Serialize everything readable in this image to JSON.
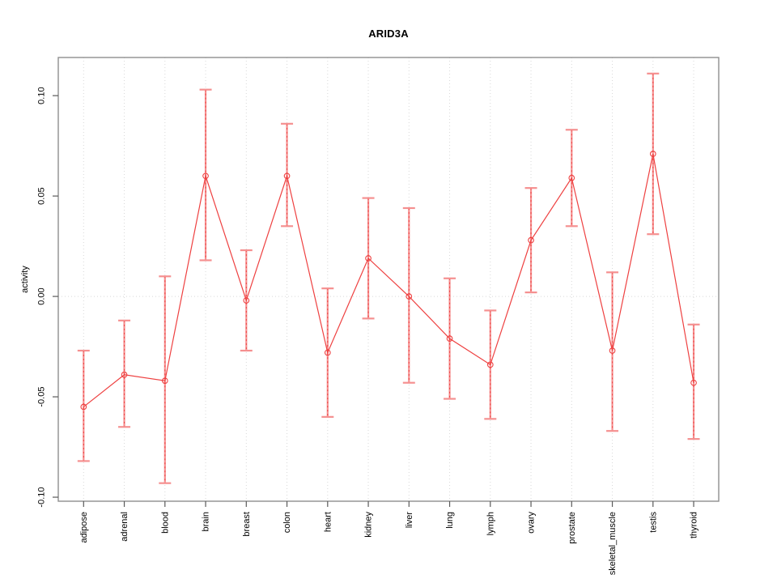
{
  "chart_data": {
    "type": "line",
    "title": "ARID3A",
    "ylabel": "activity",
    "xlabel": "",
    "legend_position": "none",
    "grid": "dotted vertical line at each category; dotted horizontal line at zero",
    "categories": [
      "adipose",
      "adrenal",
      "blood",
      "brain",
      "breast",
      "colon",
      "heart",
      "kidney",
      "liver",
      "lung",
      "lymph",
      "ovary",
      "prostate",
      "skeletal_muscle",
      "testis",
      "thyroid"
    ],
    "series": [
      {
        "name": "activity",
        "values": [
          -0.055,
          -0.039,
          -0.042,
          0.06,
          -0.002,
          0.06,
          -0.028,
          0.019,
          0.0,
          -0.021,
          -0.034,
          0.028,
          0.059,
          -0.027,
          0.071,
          -0.043
        ],
        "error_lower": [
          -0.082,
          -0.065,
          -0.093,
          0.018,
          -0.027,
          0.035,
          -0.06,
          -0.011,
          -0.043,
          -0.051,
          -0.061,
          0.002,
          0.035,
          -0.067,
          0.031,
          -0.071
        ],
        "error_upper": [
          -0.027,
          -0.012,
          0.01,
          0.103,
          0.023,
          0.086,
          0.004,
          0.049,
          0.044,
          0.009,
          -0.007,
          0.054,
          0.083,
          0.012,
          0.111,
          -0.014
        ]
      }
    ],
    "yticks": {
      "values": [
        -0.1,
        -0.05,
        0.0,
        0.05,
        0.1
      ],
      "labels": [
        "-0.10",
        "-0.05",
        "0.00",
        "0.05",
        "0.10"
      ]
    },
    "ylim": [
      -0.102,
      0.119
    ],
    "marker": "open-circle",
    "colors": {
      "line": "#ee4040",
      "marker": "#ee4040",
      "error_bar": "#f59090",
      "error_dash": "#ee4040",
      "grid": "#d8d8d8",
      "box": "#8f8f8f",
      "tick": "#5a5a5a",
      "text": "#000000",
      "background": "#ffffff"
    }
  }
}
